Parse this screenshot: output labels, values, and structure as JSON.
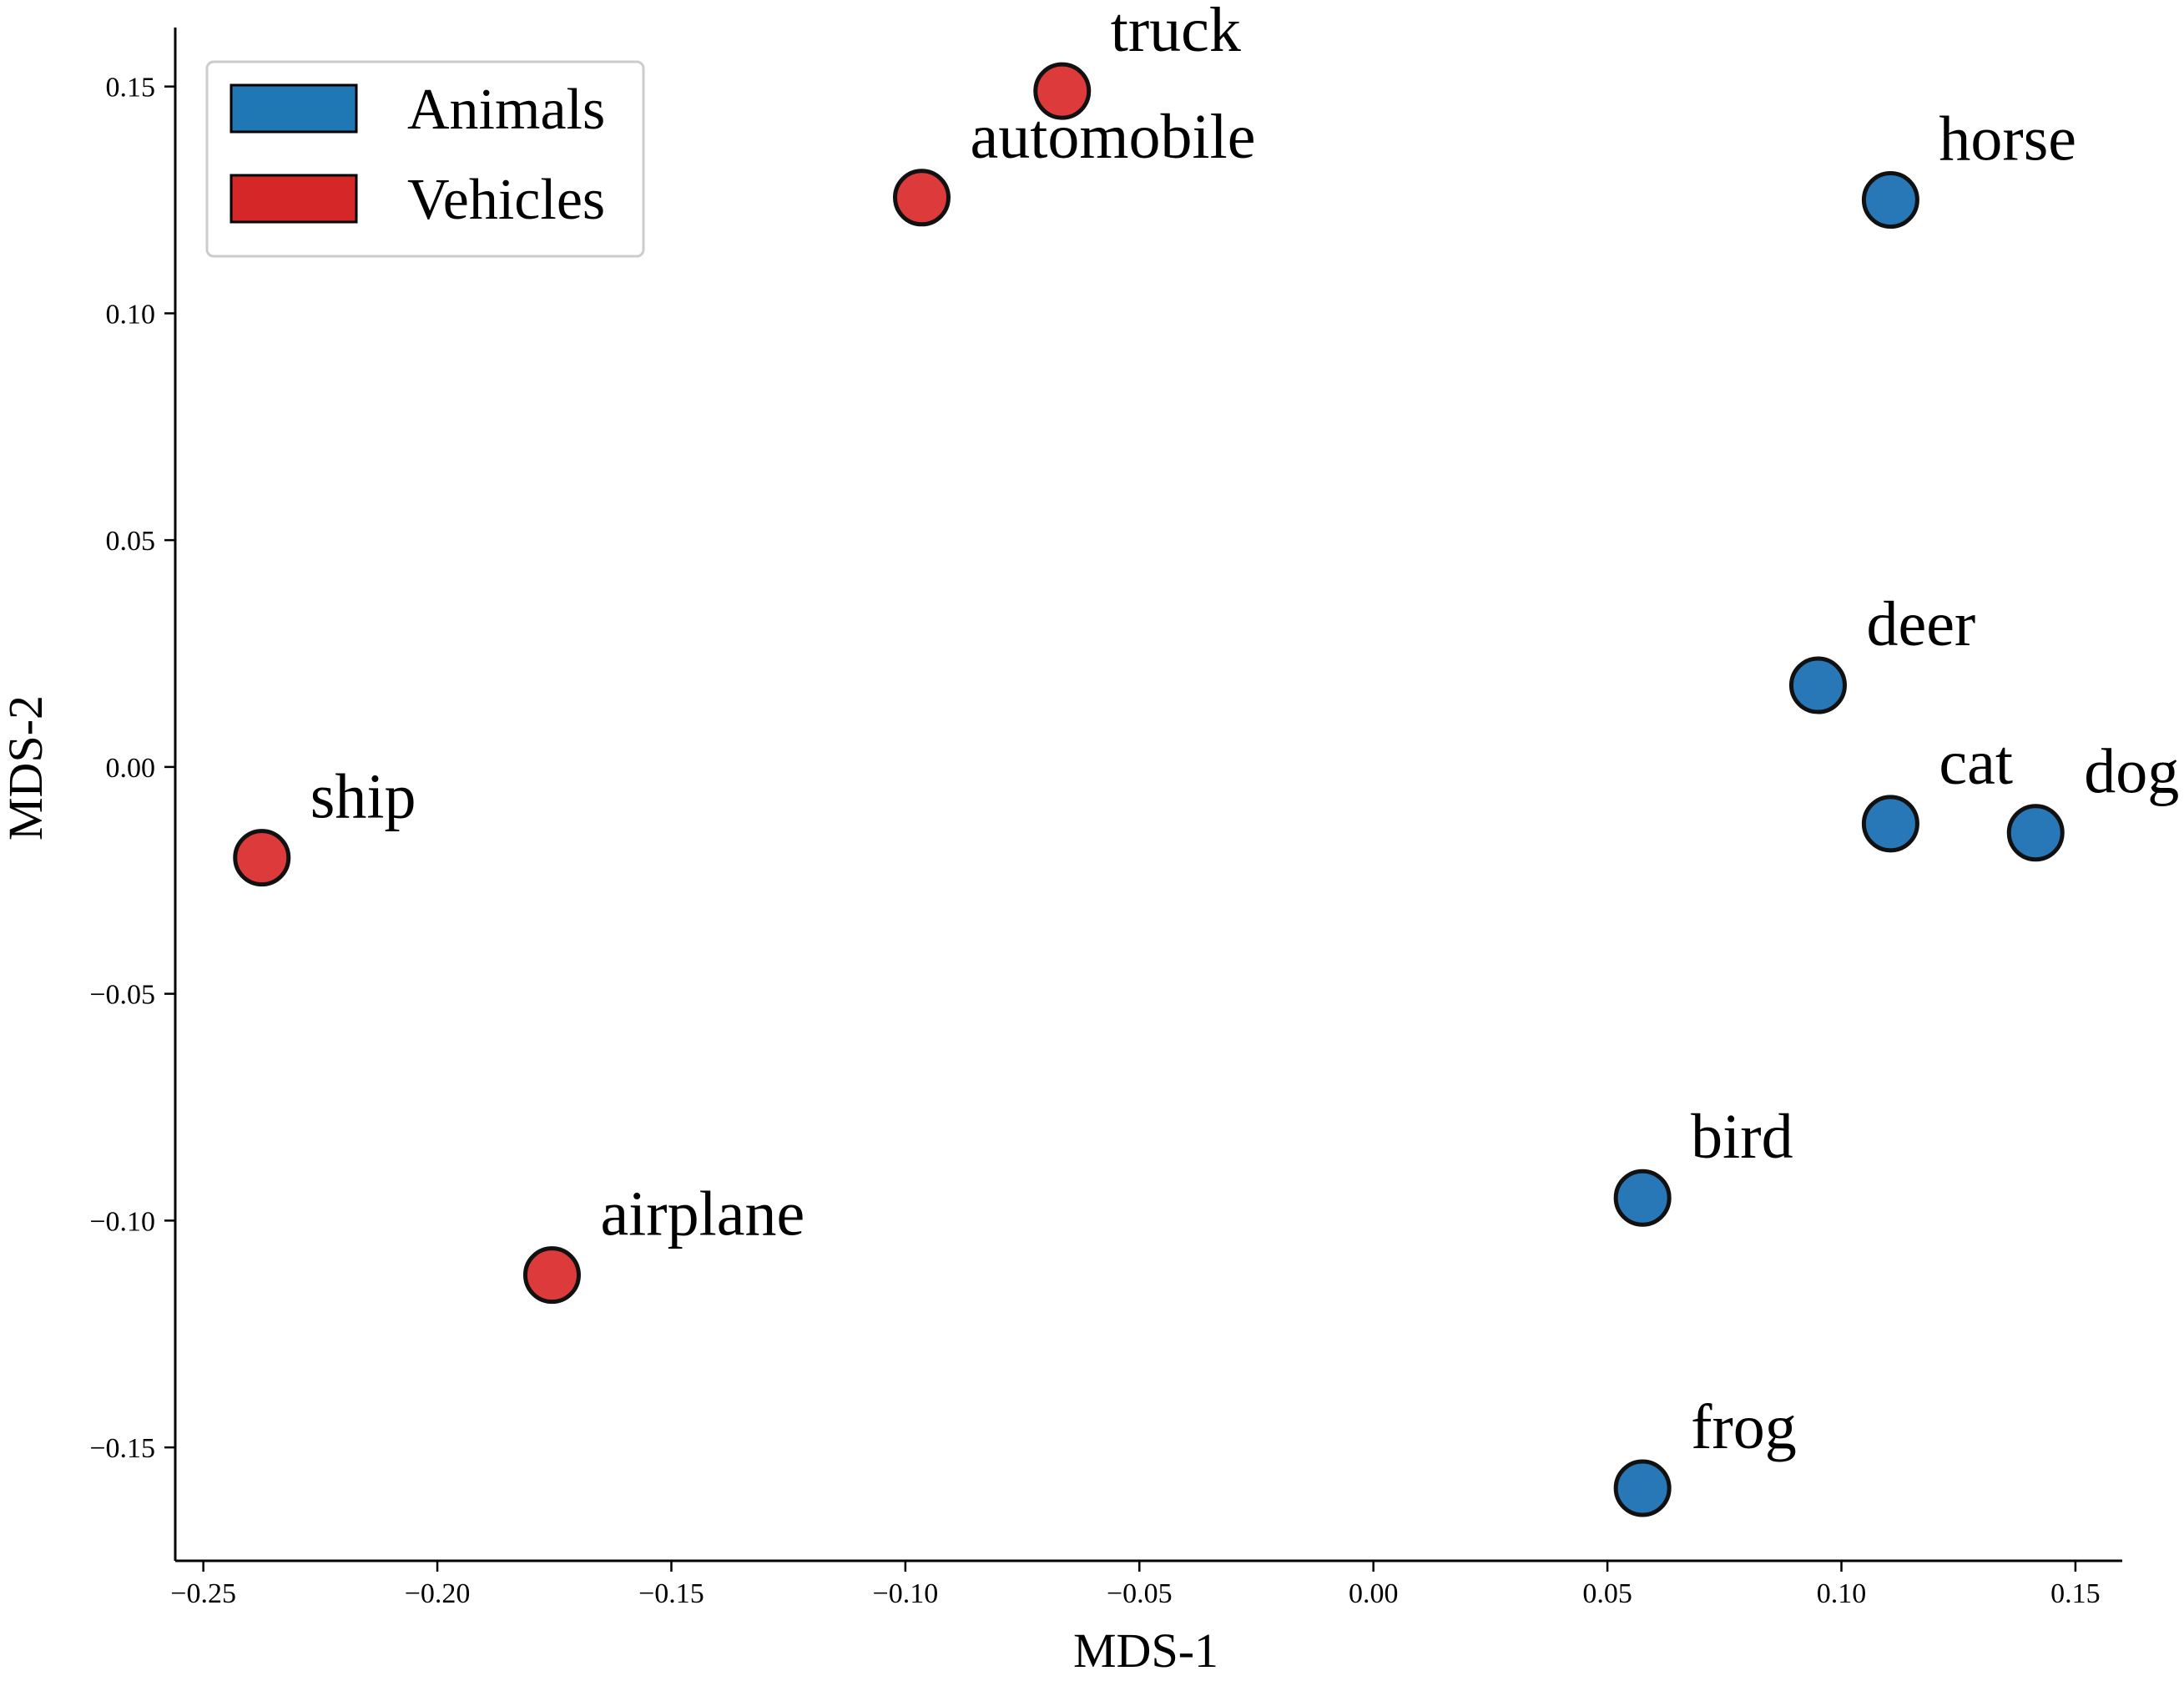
{
  "chart_data": {
    "type": "scatter",
    "title": "",
    "xlabel": "MDS-1",
    "ylabel": "MDS-2",
    "xlim": [
      -0.256,
      0.16
    ],
    "ylim": [
      -0.175,
      0.163
    ],
    "xticks": [
      -0.25,
      -0.2,
      -0.15,
      -0.1,
      -0.05,
      0.0,
      0.05,
      0.1,
      0.15
    ],
    "xtick_labels": [
      "−0.25",
      "−0.20",
      "−0.15",
      "−0.10",
      "−0.05",
      "0.00",
      "0.05",
      "0.10",
      "0.15"
    ],
    "yticks": [
      -0.15,
      -0.1,
      -0.05,
      0.0,
      0.05,
      0.1,
      0.15
    ],
    "ytick_labels": [
      "−0.15",
      "−0.10",
      "−0.05",
      "0.00",
      "0.05",
      "0.10",
      "0.15"
    ],
    "grid": false,
    "legend_position": "top-left",
    "series": [
      {
        "name": "Animals",
        "color": "#1f77b4",
        "fill": "#2878b8",
        "points": [
          {
            "label": "horse",
            "x": 0.1105,
            "y": 0.125
          },
          {
            "label": "deer",
            "x": 0.095,
            "y": 0.018
          },
          {
            "label": "cat",
            "x": 0.1105,
            "y": -0.0125
          },
          {
            "label": "dog",
            "x": 0.1415,
            "y": -0.0145
          },
          {
            "label": "bird",
            "x": 0.0575,
            "y": -0.095
          },
          {
            "label": "frog",
            "x": 0.0575,
            "y": -0.159
          }
        ]
      },
      {
        "name": "Vehicles",
        "color": "#d62728",
        "fill": "#dd3a3b",
        "points": [
          {
            "label": "truck",
            "x": -0.0665,
            "y": 0.149
          },
          {
            "label": "automobile",
            "x": -0.0965,
            "y": 0.1255
          },
          {
            "label": "ship",
            "x": -0.2375,
            "y": -0.02
          },
          {
            "label": "airplane",
            "x": -0.1755,
            "y": -0.112
          }
        ]
      }
    ]
  }
}
